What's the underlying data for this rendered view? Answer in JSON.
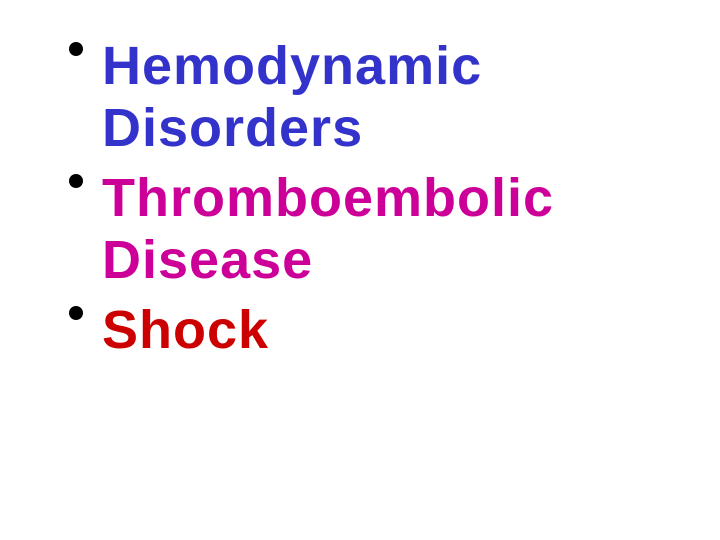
{
  "slide": {
    "items": [
      {
        "text": "Hemodynamic Disorders",
        "color": "#3333cc"
      },
      {
        "text": "Thromboembolic Disease",
        "color": "#cc0099"
      },
      {
        "text": "Shock",
        "color": "#cc0000"
      }
    ],
    "background_color": "#ffffff",
    "bullet_color": "#000000",
    "font_size": 54,
    "font_weight": "bold"
  }
}
